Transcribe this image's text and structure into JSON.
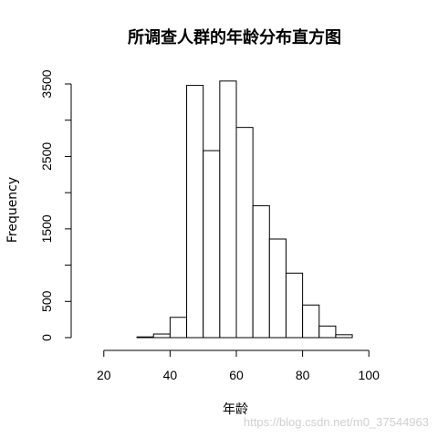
{
  "chart_data": {
    "type": "bar",
    "title": "所调查人群的年龄分布直方图",
    "xlabel": "年龄",
    "ylabel": "Frequency",
    "bins": [
      {
        "start": 30,
        "end": 35,
        "value": 10
      },
      {
        "start": 35,
        "end": 40,
        "value": 50
      },
      {
        "start": 40,
        "end": 45,
        "value": 280
      },
      {
        "start": 45,
        "end": 50,
        "value": 3480
      },
      {
        "start": 50,
        "end": 55,
        "value": 2580
      },
      {
        "start": 55,
        "end": 60,
        "value": 3540
      },
      {
        "start": 60,
        "end": 65,
        "value": 2900
      },
      {
        "start": 65,
        "end": 70,
        "value": 1820
      },
      {
        "start": 70,
        "end": 75,
        "value": 1360
      },
      {
        "start": 75,
        "end": 80,
        "value": 890
      },
      {
        "start": 80,
        "end": 85,
        "value": 450
      },
      {
        "start": 85,
        "end": 90,
        "value": 160
      },
      {
        "start": 90,
        "end": 95,
        "value": 40
      }
    ],
    "xticks": [
      "20",
      "40",
      "60",
      "80",
      "100"
    ],
    "xtick_values": [
      20,
      40,
      60,
      80,
      100
    ],
    "yticks": [
      "0",
      "500",
      "1500",
      "2500",
      "3500"
    ],
    "ytick_values": [
      0,
      500,
      1500,
      2500,
      3500
    ],
    "yminor_ticks": [
      1000,
      2000,
      3000
    ],
    "xlim": [
      14,
      106
    ],
    "ylim": [
      0,
      3500
    ],
    "grid": false,
    "legend": false
  },
  "watermark": "https://blog.csdn.net/m0_37544963"
}
